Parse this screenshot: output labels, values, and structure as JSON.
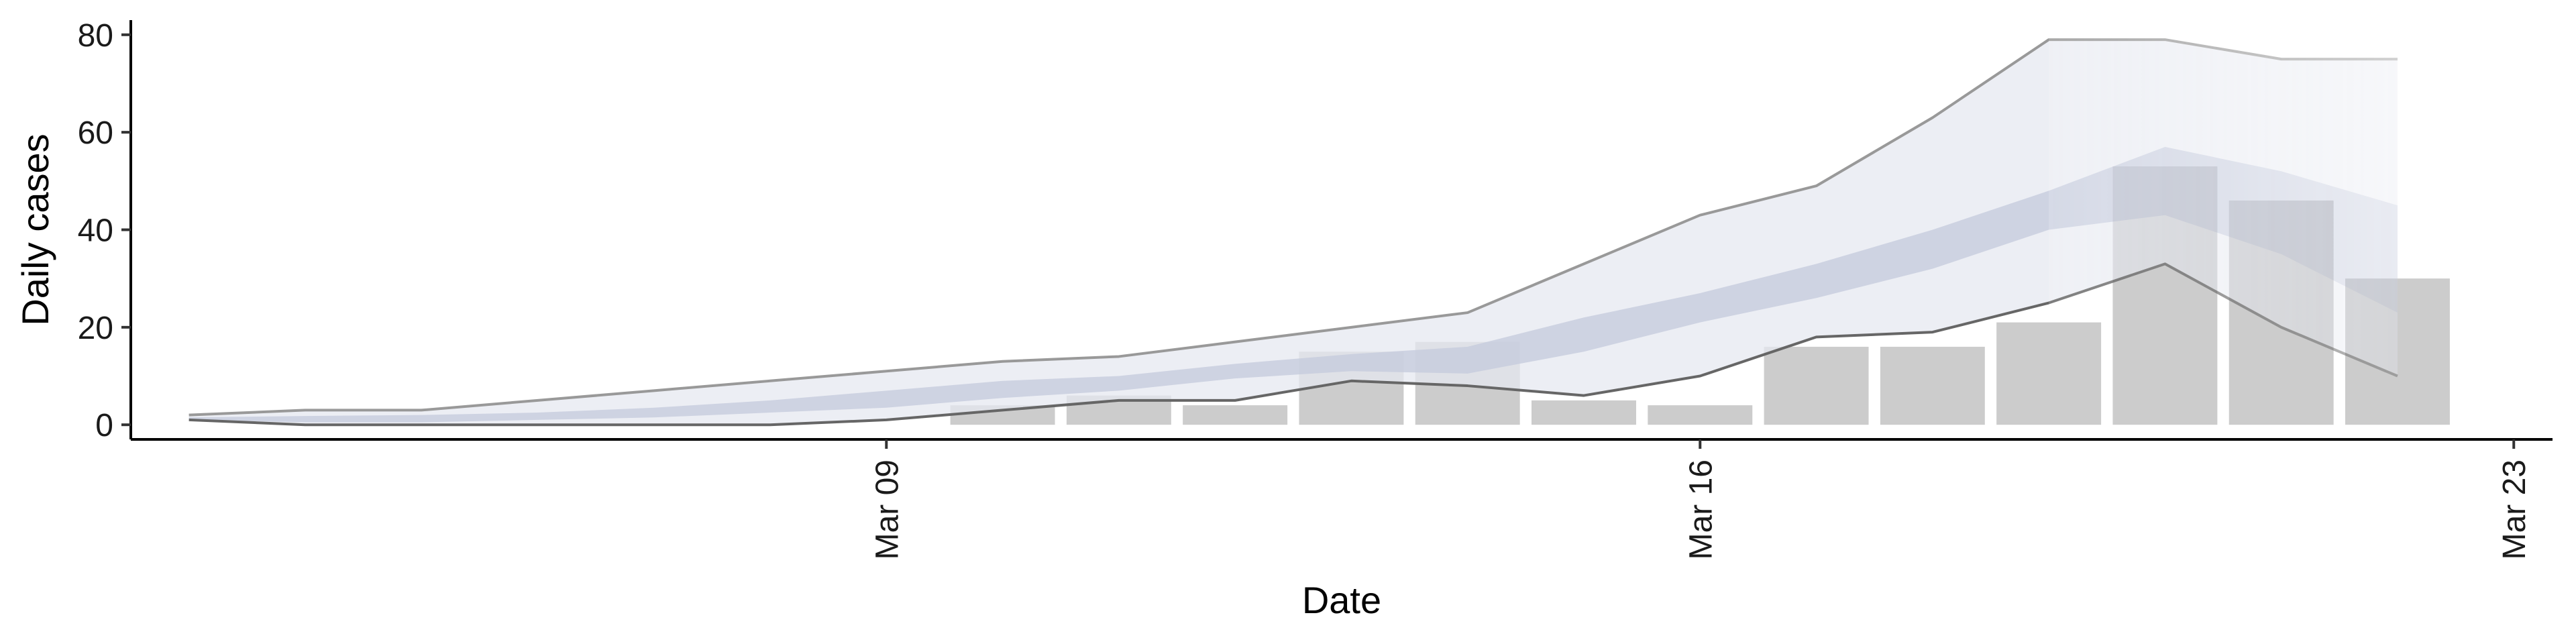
{
  "chart_data": {
    "type": "bar",
    "title": "",
    "xlabel": "Date",
    "ylabel": "Daily cases",
    "ylim": [
      -3,
      83
    ],
    "xlim": [
      "2020-03-02T12:00",
      "2020-03-23T08:00"
    ],
    "y_ticks": [
      0,
      20,
      40,
      60,
      80
    ],
    "x_ticks": [
      {
        "date": "2020-03-09",
        "label": "Mar 09"
      },
      {
        "date": "2020-03-16",
        "label": "Mar 16"
      },
      {
        "date": "2020-03-23",
        "label": "Mar 23"
      }
    ],
    "x_tick_label_rotation": "vertical",
    "grid": false,
    "legend": "none",
    "colors": {
      "bars": "#cccccc",
      "outer_band": "#e6e8f0",
      "inner_band": "#c4cadc",
      "line_upper": "#999999",
      "line_lower": "#666666"
    },
    "observed_daily_cases": {
      "dates": [
        "2020-03-10",
        "2020-03-11",
        "2020-03-12",
        "2020-03-13",
        "2020-03-14",
        "2020-03-15",
        "2020-03-16",
        "2020-03-17",
        "2020-03-18",
        "2020-03-19",
        "2020-03-20",
        "2020-03-21",
        "2020-03-22"
      ],
      "values": [
        4,
        6,
        4,
        15,
        17,
        5,
        4,
        16,
        16,
        21,
        53,
        46,
        30
      ]
    },
    "estimate": {
      "dates": [
        "2020-03-03",
        "2020-03-04",
        "2020-03-05",
        "2020-03-06",
        "2020-03-07",
        "2020-03-08",
        "2020-03-09",
        "2020-03-10",
        "2020-03-11",
        "2020-03-12",
        "2020-03-13",
        "2020-03-14",
        "2020-03-15",
        "2020-03-16",
        "2020-03-17",
        "2020-03-18",
        "2020-03-19",
        "2020-03-20",
        "2020-03-21",
        "2020-03-22"
      ],
      "upper_90": [
        2,
        3,
        3,
        5,
        7,
        9,
        11,
        13,
        14,
        17,
        20,
        23,
        33,
        43,
        49,
        63,
        79,
        79,
        75,
        75
      ],
      "upper_50": [
        1.5,
        1.8,
        2,
        2.5,
        3.5,
        5,
        7,
        9,
        10,
        12.5,
        14.5,
        16,
        22,
        27,
        33,
        40,
        48,
        57,
        52,
        45
      ],
      "lower_50": [
        1,
        0.5,
        0.5,
        1,
        1.5,
        2.5,
        3.5,
        5.5,
        7,
        9.5,
        11,
        10.5,
        15,
        21,
        26,
        32,
        40,
        43,
        35,
        23
      ],
      "lower_90": [
        1,
        0,
        0,
        0,
        0,
        0,
        1,
        3,
        5,
        5,
        9,
        8,
        6,
        10,
        18,
        19,
        25,
        33,
        20,
        10
      ],
      "fade_from_date": "2020-03-19"
    }
  }
}
